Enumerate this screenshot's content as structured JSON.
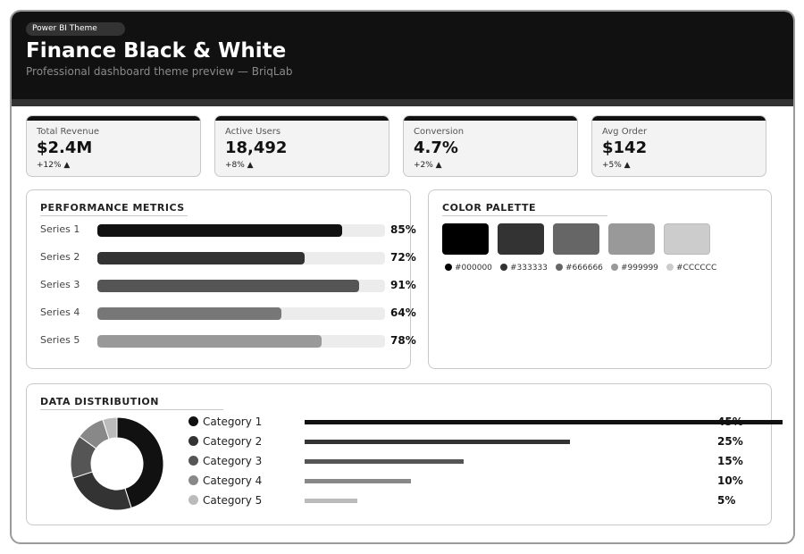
{
  "header": {
    "badge": "Power BI Theme",
    "title": "Finance Black & White",
    "subtitle": "Professional dashboard theme preview — BriqLab"
  },
  "kpis": [
    {
      "label": "Total Revenue",
      "value": "$2.4M",
      "delta": "+12% ▲"
    },
    {
      "label": "Active Users",
      "value": "18,492",
      "delta": "+8% ▲"
    },
    {
      "label": "Conversion",
      "value": "4.7%",
      "delta": "+2% ▲"
    },
    {
      "label": "Avg Order",
      "value": "$142",
      "delta": "+5% ▲"
    }
  ],
  "performance": {
    "title": "PERFORMANCE METRICS",
    "rows": [
      {
        "label": "Series 1",
        "value": 85,
        "pct": "85%",
        "color": "#111111"
      },
      {
        "label": "Series 2",
        "value": 72,
        "pct": "72%",
        "color": "#333333"
      },
      {
        "label": "Series 3",
        "value": 91,
        "pct": "91%",
        "color": "#555555"
      },
      {
        "label": "Series 4",
        "value": 64,
        "pct": "64%",
        "color": "#777777"
      },
      {
        "label": "Series 5",
        "value": 78,
        "pct": "78%",
        "color": "#999999"
      }
    ]
  },
  "palette": {
    "title": "COLOR PALETTE",
    "colors": [
      "#000000",
      "#333333",
      "#666666",
      "#999999",
      "#CCCCCC"
    ]
  },
  "distribution": {
    "title": "DATA DISTRIBUTION",
    "categories": [
      {
        "label": "Category 1",
        "value": 45,
        "pct": "45%",
        "color": "#111111"
      },
      {
        "label": "Category 2",
        "value": 25,
        "pct": "25%",
        "color": "#333333"
      },
      {
        "label": "Category 3",
        "value": 15,
        "pct": "15%",
        "color": "#555555"
      },
      {
        "label": "Category 4",
        "value": 10,
        "pct": "10%",
        "color": "#888888"
      },
      {
        "label": "Category 5",
        "value": 5,
        "pct": "5%",
        "color": "#bbbbbb"
      }
    ]
  },
  "chart_data": {
    "type": "pie",
    "categories": [
      "Category 1",
      "Category 2",
      "Category 3",
      "Category 4",
      "Category 5"
    ],
    "values": [
      45,
      25,
      15,
      10,
      5
    ]
  }
}
